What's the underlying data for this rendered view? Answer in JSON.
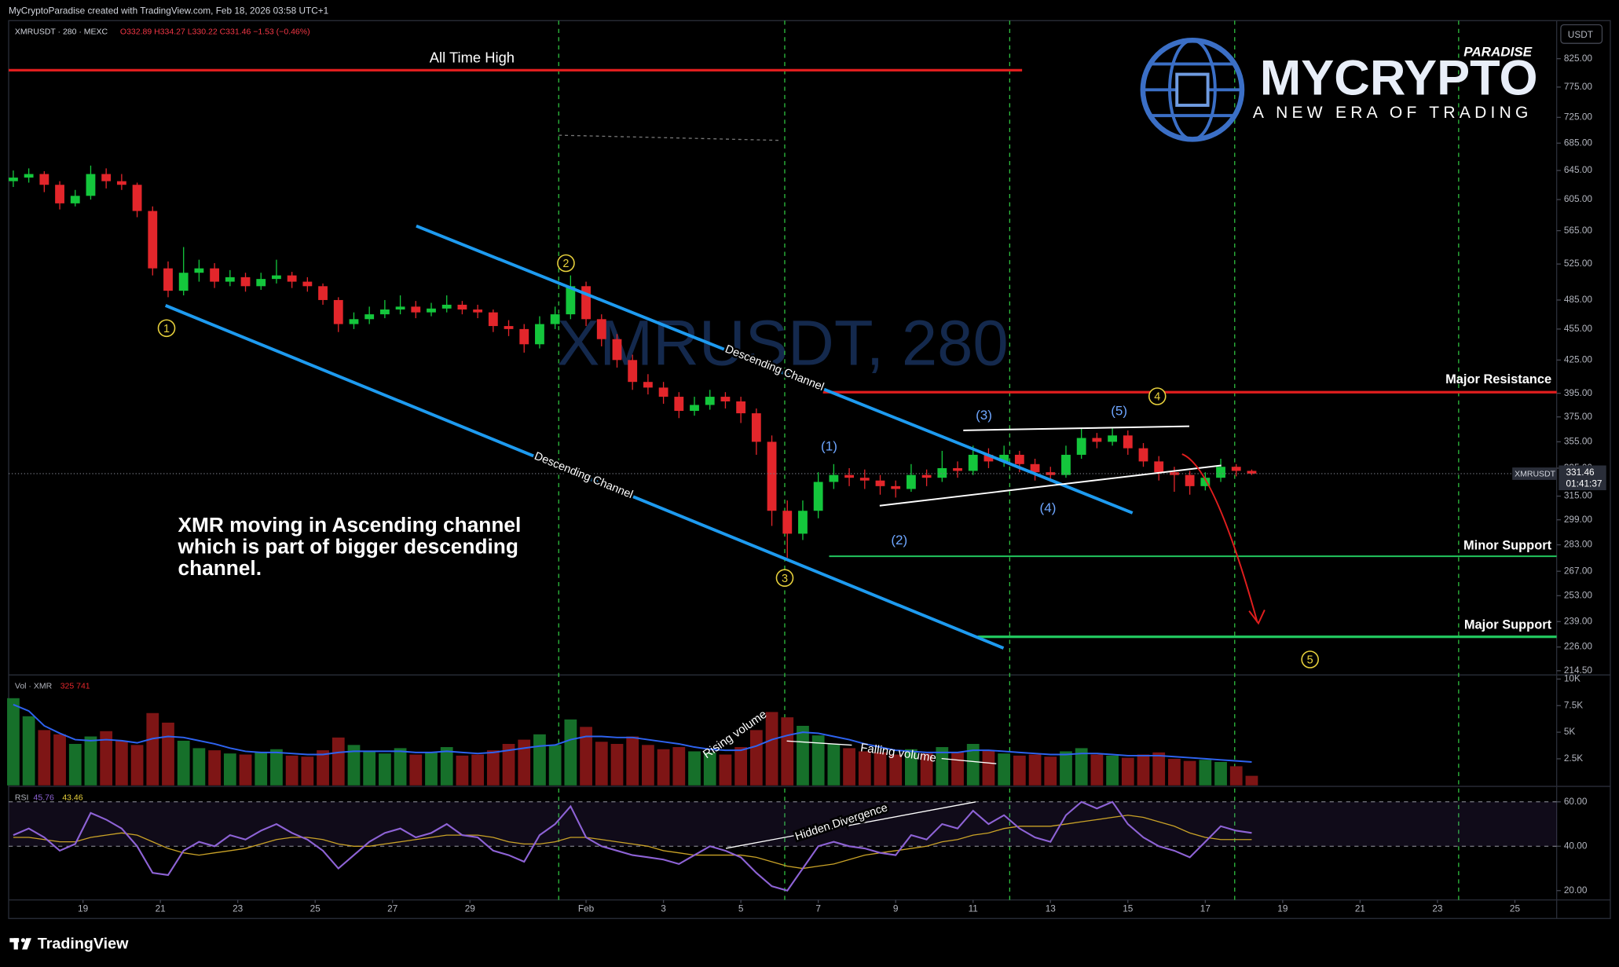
{
  "header": {
    "creator": "MyCryptoParadise created with TradingView.com, Feb 18, 2026 03:58 UTC+1",
    "symbol": "XMRUSDT · 280 · MEXC",
    "ohlc": "O332.89 H334.27 L330.22 C331.46 −1.53 (−0.46%)",
    "currency": "USDT"
  },
  "logo": {
    "tagline_top": "PARADISE",
    "name": "MYCRYPTO",
    "tagline": "A NEW ERA OF TRADING"
  },
  "price_tag": {
    "symbol": "XMRUSDT",
    "price": "331.46",
    "countdown": "01:41:37"
  },
  "annotations": {
    "watermark": "XMRUSDT, 280",
    "ath": "All Time High",
    "channel_upper": "Descending Channel",
    "channel_lower": "Descending Channel",
    "major_resistance": "Major Resistance",
    "minor_support": "Minor Support",
    "major_support": "Major Support",
    "note": [
      "XMR moving in Ascending channel",
      "which is part of bigger descending",
      "channel."
    ],
    "rising_volume": "Rising volume",
    "falling_volume": "Falling volume",
    "hidden_divergence": "Hidden Divergence",
    "waves_minor": [
      "(1)",
      "(2)",
      "(3)",
      "(4)",
      "(5)"
    ],
    "waves_major": [
      "1",
      "2",
      "3",
      "4",
      "5"
    ]
  },
  "chart_data": {
    "type": "candlestick",
    "x": [
      17.2,
      17.6,
      18,
      18.4,
      18.8,
      19.2,
      19.6,
      20,
      20.4,
      20.8,
      21.2,
      21.6,
      22,
      22.4,
      22.8,
      23.2,
      23.6,
      24,
      24.4,
      24.8,
      25.2,
      25.6,
      26,
      26.4,
      26.8,
      27.2,
      27.6,
      28,
      28.4,
      28.8,
      29.2,
      29.6,
      30,
      30.4,
      30.8,
      31.2,
      31.6,
      32,
      32.4,
      32.8,
      33.2,
      33.6,
      34,
      34.4,
      34.8,
      35.2,
      35.6,
      36,
      36.4,
      36.8,
      37.2,
      37.6,
      38,
      38.4,
      38.8,
      39.2,
      39.6,
      40,
      40.4,
      40.8,
      41.2,
      41.6,
      42,
      42.4,
      42.8,
      43.2,
      43.6,
      44,
      44.4,
      44.8,
      45.2,
      45.6,
      46,
      46.4,
      46.8,
      47.2,
      47.6,
      48,
      48.4,
      48.8,
      49.2
    ],
    "xlim": [
      17.08,
      57.08
    ],
    "xticks": [
      19,
      21,
      23,
      25,
      27,
      29,
      {
        "value": 32,
        "label": "Feb"
      },
      {
        "value": 34,
        "label": "3"
      },
      {
        "value": 36,
        "label": "5"
      },
      {
        "value": 38,
        "label": "7"
      },
      {
        "value": 40,
        "label": "9"
      },
      {
        "value": 42,
        "label": "11"
      },
      {
        "value": 44,
        "label": "13"
      },
      {
        "value": 46,
        "label": "15"
      },
      {
        "value": 48,
        "label": "17"
      },
      {
        "value": 50,
        "label": "19"
      },
      {
        "value": 52,
        "label": "21"
      },
      {
        "value": 54,
        "label": "23"
      },
      {
        "value": 56,
        "label": "25"
      }
    ],
    "open": [
      630,
      635,
      640,
      625,
      600,
      610,
      640,
      630,
      625,
      590,
      520,
      495,
      515,
      520,
      505,
      510,
      500,
      508,
      512,
      505,
      500,
      485,
      460,
      465,
      470,
      475,
      478,
      472,
      476,
      480,
      475,
      472,
      458,
      455,
      440,
      460,
      470,
      500,
      465,
      445,
      425,
      405,
      400,
      392,
      380,
      385,
      392,
      388,
      378,
      355,
      305,
      290,
      305,
      325,
      330,
      328,
      326,
      322,
      320,
      330,
      328,
      335,
      333,
      345,
      340,
      345,
      338,
      332,
      330,
      345,
      358,
      355,
      360,
      350,
      340,
      332,
      330,
      322,
      328,
      336,
      333
    ],
    "high": [
      645,
      648,
      644,
      630,
      618,
      652,
      648,
      640,
      628,
      596,
      528,
      545,
      530,
      526,
      518,
      515,
      515,
      530,
      516,
      510,
      503,
      488,
      472,
      478,
      485,
      490,
      484,
      482,
      490,
      484,
      480,
      475,
      464,
      460,
      468,
      478,
      512,
      505,
      470,
      450,
      430,
      412,
      405,
      396,
      392,
      398,
      396,
      392,
      382,
      360,
      312,
      312,
      332,
      338,
      335,
      334,
      330,
      326,
      338,
      334,
      348,
      340,
      352,
      350,
      352,
      348,
      342,
      336,
      352,
      366,
      362,
      366,
      364,
      354,
      344,
      336,
      333,
      332,
      342,
      338,
      334
    ],
    "low": [
      622,
      628,
      615,
      592,
      596,
      605,
      620,
      618,
      582,
      512,
      488,
      490,
      505,
      498,
      500,
      494,
      496,
      503,
      498,
      494,
      480,
      452,
      455,
      460,
      466,
      470,
      466,
      468,
      472,
      470,
      466,
      452,
      448,
      432,
      436,
      455,
      465,
      458,
      438,
      418,
      398,
      394,
      386,
      374,
      376,
      381,
      382,
      370,
      345,
      295,
      275,
      286,
      300,
      320,
      322,
      320,
      316,
      314,
      318,
      322,
      325,
      328,
      330,
      335,
      336,
      332,
      326,
      325,
      328,
      342,
      350,
      352,
      345,
      336,
      326,
      318,
      316,
      319,
      325,
      329,
      330
    ],
    "close": [
      635,
      640,
      625,
      600,
      610,
      640,
      630,
      625,
      590,
      520,
      495,
      515,
      520,
      505,
      510,
      500,
      508,
      512,
      505,
      500,
      485,
      460,
      465,
      470,
      475,
      478,
      472,
      476,
      480,
      475,
      472,
      458,
      455,
      440,
      460,
      470,
      500,
      465,
      445,
      425,
      405,
      400,
      392,
      380,
      385,
      392,
      388,
      378,
      355,
      305,
      290,
      305,
      325,
      330,
      328,
      326,
      322,
      320,
      330,
      328,
      335,
      333,
      345,
      340,
      345,
      338,
      332,
      330,
      345,
      358,
      355,
      360,
      350,
      340,
      332,
      330,
      322,
      328,
      336,
      333,
      331
    ],
    "ylim": [
      213,
      897
    ],
    "log_scale": true,
    "yticks": [
      {
        "value": 825,
        "label": "825.00"
      },
      {
        "value": 775,
        "label": "775.00"
      },
      {
        "value": 725,
        "label": "725.00"
      },
      {
        "value": 685,
        "label": "685.00"
      },
      {
        "value": 645,
        "label": "645.00"
      },
      {
        "value": 605,
        "label": "605.00"
      },
      {
        "value": 565,
        "label": "565.00"
      },
      {
        "value": 525,
        "label": "525.00"
      },
      {
        "value": 485,
        "label": "485.00"
      },
      {
        "value": 455,
        "label": "455.00"
      },
      {
        "value": 425,
        "label": "425.00"
      },
      {
        "value": 395,
        "label": "395.00"
      },
      {
        "value": 375,
        "label": "375.00"
      },
      {
        "value": 355,
        "label": "355.00"
      },
      {
        "value": 335,
        "label": "335.00"
      },
      {
        "value": 315,
        "label": "315.00"
      },
      {
        "value": 299,
        "label": "299.00"
      },
      {
        "value": 283,
        "label": "283.00"
      },
      {
        "value": 267,
        "label": "267.00"
      },
      {
        "value": 253,
        "label": "253.00"
      },
      {
        "value": 239,
        "label": "239.00"
      },
      {
        "value": 226,
        "label": "226.00"
      },
      {
        "value": 214.5,
        "label": "214.50"
      }
    ],
    "up_color": "#14c63c",
    "down_color": "#e3262b",
    "volume": {
      "type": "bar",
      "legend": "Vol · XMR",
      "legend_values": "325 741",
      "values": [
        8200,
        6500,
        5200,
        4800,
        3900,
        4600,
        5100,
        4200,
        3800,
        6800,
        5900,
        4200,
        3500,
        3300,
        3000,
        2900,
        3100,
        3400,
        2800,
        2700,
        3300,
        4500,
        3800,
        3200,
        3000,
        3500,
        2900,
        3100,
        3600,
        2800,
        2900,
        3300,
        3900,
        4300,
        4800,
        3800,
        6200,
        5500,
        4100,
        3900,
        4600,
        3800,
        3400,
        3600,
        3200,
        3100,
        2900,
        3600,
        5200,
        6900,
        6400,
        5600,
        4700,
        3900,
        3500,
        3200,
        3100,
        2900,
        3400,
        3000,
        3600,
        3100,
        3900,
        3300,
        3000,
        2800,
        2900,
        2700,
        3200,
        3500,
        2900,
        2800,
        2600,
        2900,
        3100,
        2500,
        2300,
        2400,
        2200,
        1800,
        900
      ],
      "up_color": "#16702a",
      "down_color": "#7e1515",
      "ma": {
        "color": "#2e63f0",
        "values": [
          7600,
          7000,
          5600,
          4900,
          4300,
          4200,
          4300,
          4200,
          4000,
          4400,
          4600,
          4500,
          4200,
          3900,
          3500,
          3200,
          3100,
          3100,
          3000,
          2900,
          2900,
          3100,
          3200,
          3200,
          3200,
          3200,
          3100,
          3100,
          3200,
          3100,
          3000,
          3100,
          3300,
          3500,
          3700,
          3800,
          4300,
          4600,
          4600,
          4500,
          4500,
          4300,
          4100,
          3900,
          3600,
          3400,
          3300,
          3300,
          3700,
          4300,
          4700,
          5000,
          4900,
          4600,
          4300,
          3900,
          3600,
          3300,
          3200,
          3100,
          3100,
          3100,
          3300,
          3300,
          3200,
          3100,
          3000,
          2900,
          2900,
          3000,
          3000,
          2900,
          2800,
          2800,
          2800,
          2700,
          2600,
          2500,
          2400,
          2300,
          2200
        ]
      },
      "ylim": [
        0,
        10290
      ],
      "yticks": [
        {
          "value": 10000,
          "label": "10K"
        },
        {
          "value": 7500,
          "label": "7.5K"
        },
        {
          "value": 5000,
          "label": "5K"
        },
        {
          "value": 2500,
          "label": "2.5K"
        }
      ]
    },
    "rsi": {
      "type": "line",
      "legend": "RSI",
      "legend_values": [
        "45.76",
        "43.46"
      ],
      "color": "#8e63d6",
      "values": [
        45,
        48,
        44,
        38,
        41,
        55,
        52,
        48,
        40,
        28,
        27,
        38,
        42,
        40,
        45,
        43,
        47,
        50,
        46,
        43,
        38,
        30,
        36,
        42,
        46,
        48,
        44,
        46,
        50,
        45,
        44,
        38,
        36,
        33,
        45,
        50,
        58,
        44,
        40,
        38,
        36,
        35,
        34,
        32,
        36,
        40,
        38,
        35,
        28,
        22,
        20,
        30,
        40,
        42,
        40,
        39,
        37,
        36,
        45,
        43,
        50,
        48,
        56,
        50,
        54,
        48,
        44,
        42,
        54,
        60,
        57,
        60,
        50,
        44,
        40,
        38,
        35,
        42,
        49,
        47,
        46
      ],
      "ma": {
        "color": "#c9a227",
        "values": [
          44,
          44,
          43,
          42,
          42,
          44,
          45,
          46,
          45,
          42,
          39,
          37,
          36,
          37,
          38,
          39,
          41,
          43,
          44,
          44,
          43,
          41,
          40,
          40,
          41,
          42,
          43,
          44,
          45,
          45,
          45,
          44,
          42,
          41,
          41,
          42,
          44,
          44,
          43,
          42,
          41,
          40,
          38,
          37,
          36,
          36,
          36,
          36,
          35,
          33,
          31,
          30,
          31,
          32,
          34,
          36,
          37,
          38,
          39,
          40,
          42,
          43,
          45,
          46,
          48,
          49,
          49,
          49,
          50,
          51,
          52,
          53,
          54,
          53,
          51,
          49,
          46,
          44,
          43,
          43,
          43
        ]
      },
      "band": [
        40,
        60
      ],
      "ylim": [
        15.8,
        66.5
      ],
      "yticks": [
        {
          "value": 60,
          "label": "60.00"
        },
        {
          "value": 40,
          "label": "40.00"
        },
        {
          "value": 20,
          "label": "20.00"
        }
      ]
    }
  },
  "footer": {
    "brand": "TradingView"
  }
}
